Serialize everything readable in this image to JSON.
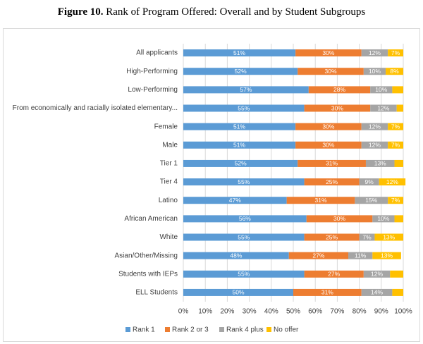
{
  "chart_data": {
    "type": "stacked-bar-horizontal",
    "title_number": "Figure 10.",
    "title": "Rank of Program Offered: Overall and by Student Subgroups",
    "categories": [
      "All applicants",
      "High-Performing",
      "Low-Performing",
      "From economically and racially isolated elementary...",
      "Female",
      "Male",
      "Tier 1",
      "Tier 4",
      "Latino",
      "African American",
      "White",
      "Asian/Other/Missing",
      "Students with IEPs",
      "ELL Students"
    ],
    "series": [
      {
        "name": "Rank 1",
        "color": "#5b9bd5",
        "values": [
          51,
          52,
          57,
          55,
          51,
          51,
          52,
          55,
          47,
          56,
          55,
          48,
          55,
          50
        ],
        "value_labels": [
          "51%",
          "52%",
          "57%",
          "55%",
          "51%",
          "51%",
          "52%",
          "55%",
          "47%",
          "56%",
          "55%",
          "48%",
          "55%",
          "50%"
        ]
      },
      {
        "name": "Rank 2 or 3",
        "color": "#ed7d31",
        "values": [
          30,
          30,
          28,
          30,
          30,
          30,
          31,
          25,
          31,
          30,
          25,
          27,
          27,
          31
        ],
        "value_labels": [
          "30%",
          "30%",
          "28%",
          "30%",
          "30%",
          "30%",
          "31%",
          "25%",
          "31%",
          "30%",
          "25%",
          "27%",
          "27%",
          "31%"
        ]
      },
      {
        "name": "Rank 4 plus",
        "color": "#a5a5a5",
        "values": [
          12,
          10,
          10,
          12,
          12,
          12,
          13,
          9,
          15,
          10,
          7,
          11,
          12,
          14
        ],
        "value_labels": [
          "12%",
          "10%",
          "10%",
          "12%",
          "12%",
          "12%",
          "13%",
          "9%",
          "15%",
          "10%",
          "7%",
          "11%",
          "12%",
          "14%"
        ]
      },
      {
        "name": "No offer",
        "color": "#ffc000",
        "values": [
          7,
          8,
          5,
          3,
          7,
          7,
          4,
          12,
          7,
          4,
          13,
          13,
          6,
          5
        ],
        "value_labels": [
          "7%",
          "8%",
          null,
          null,
          "7%",
          "7%",
          null,
          "12%",
          "7%",
          null,
          "13%",
          "13%",
          null,
          null
        ]
      }
    ],
    "xlim": [
      0,
      100
    ],
    "xticks": [
      {
        "value": 0,
        "label": "0%"
      },
      {
        "value": 10,
        "label": "10%"
      },
      {
        "value": 20,
        "label": "20%"
      },
      {
        "value": 30,
        "label": "30%"
      },
      {
        "value": 40,
        "label": "40%"
      },
      {
        "value": 50,
        "label": "50%"
      },
      {
        "value": 60,
        "label": "60%"
      },
      {
        "value": 70,
        "label": "70%"
      },
      {
        "value": 80,
        "label": "80%"
      },
      {
        "value": 90,
        "label": "90%"
      },
      {
        "value": 100,
        "label": "100%"
      }
    ],
    "grid": true,
    "legend": "bottom"
  }
}
